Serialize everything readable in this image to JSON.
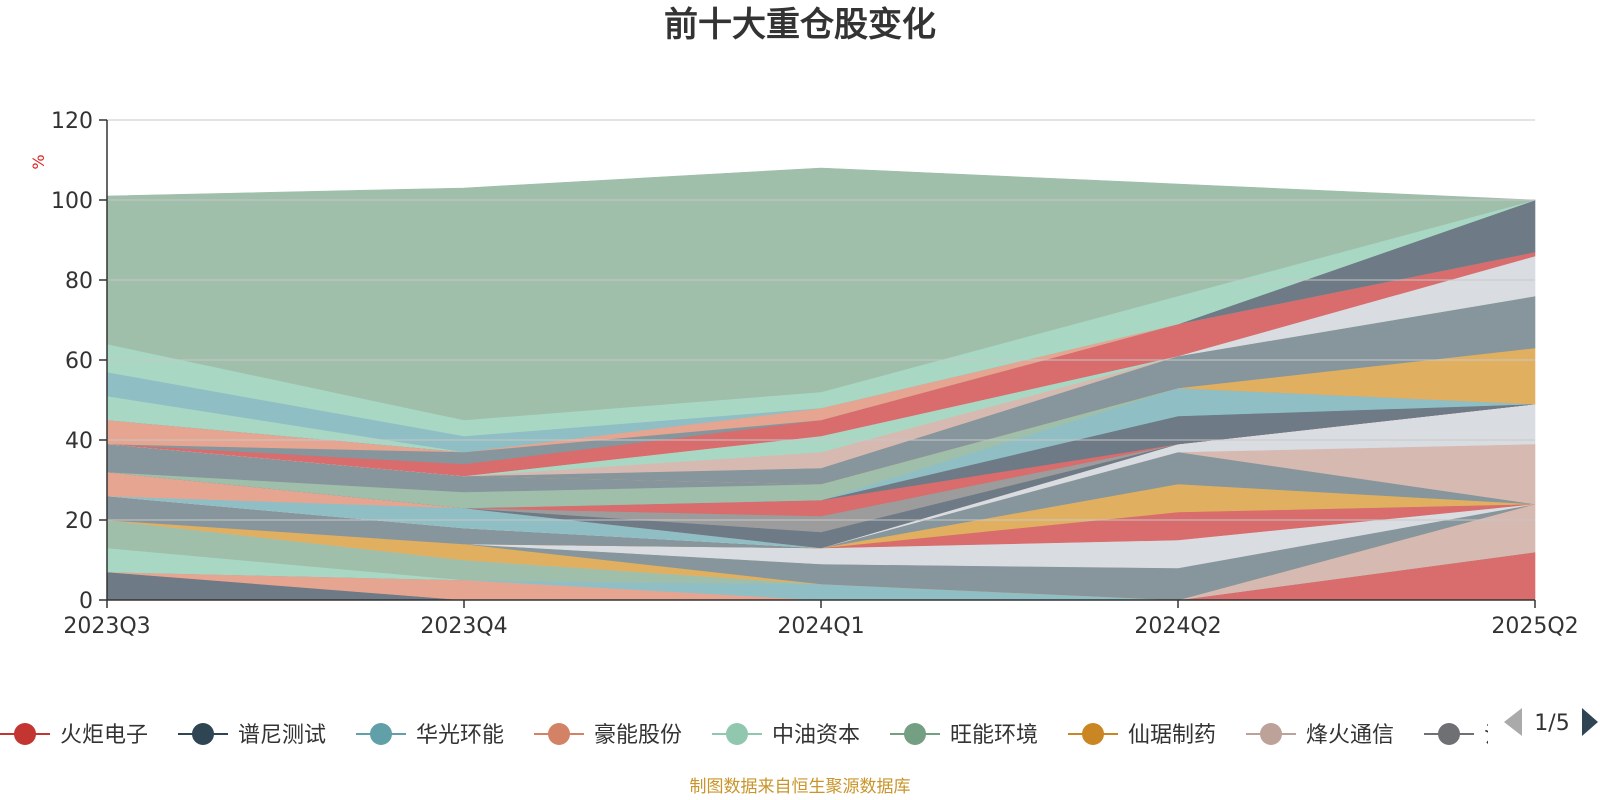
{
  "chart_data": {
    "type": "area",
    "title": "前十大重仓股变化",
    "ylabel": "%",
    "ylim": [
      0,
      120
    ],
    "yticks": [
      0,
      20,
      40,
      60,
      80,
      100,
      120
    ],
    "grid": true,
    "legend_position": "bottom",
    "x": [
      "2023Q3",
      "2023Q4",
      "2024Q1",
      "2024Q2",
      "2025Q2"
    ],
    "series_order_note_hidden": false,
    "layers": [
      {
        "color": "#6e7a85",
        "values": [
          7,
          0,
          0,
          0,
          0
        ]
      },
      {
        "color": "#e6a591",
        "values": [
          0,
          5,
          0,
          0,
          0
        ]
      },
      {
        "color": "#8fbfc5",
        "values": [
          0,
          0,
          4,
          0,
          0
        ]
      },
      {
        "color": "#d96c6c",
        "values": [
          0,
          0,
          0,
          0,
          12
        ]
      },
      {
        "color": "#a8d8c4",
        "values": [
          6,
          0,
          0,
          0,
          0
        ]
      },
      {
        "color": "#9fbfaa",
        "values": [
          7,
          5,
          0,
          0,
          0
        ]
      },
      {
        "color": "#d6bab2",
        "values": [
          0,
          0,
          0,
          0,
          12
        ]
      },
      {
        "color": "#e0b060",
        "values": [
          0,
          4,
          0,
          0,
          0
        ]
      },
      {
        "color": "#86969c",
        "values": [
          0,
          0,
          5,
          8,
          0
        ]
      },
      {
        "color": "#d9dce0",
        "values": [
          0,
          0,
          4,
          7,
          0
        ]
      },
      {
        "color": "#d96c6c",
        "values": [
          0,
          0,
          0,
          7,
          0
        ]
      },
      {
        "color": "#e0b060",
        "values": [
          0,
          0,
          0,
          7,
          0
        ]
      },
      {
        "color": "#86969c",
        "values": [
          6,
          4,
          0,
          8,
          0
        ]
      },
      {
        "color": "#d6bab2",
        "values": [
          0,
          0,
          0,
          0,
          15
        ]
      },
      {
        "color": "#d9dce0",
        "values": [
          0,
          0,
          0,
          2,
          10
        ]
      },
      {
        "color": "#8fbfc5",
        "values": [
          0,
          5,
          0,
          0,
          0
        ]
      },
      {
        "color": "#e6a591",
        "values": [
          6,
          0,
          0,
          0,
          0
        ]
      },
      {
        "color": "#6e7a85",
        "values": [
          0,
          0,
          4,
          0,
          0
        ]
      },
      {
        "color": "#9c9c9c",
        "values": [
          0,
          0,
          4,
          0,
          0
        ]
      },
      {
        "color": "#d96c6c",
        "values": [
          0,
          0,
          4,
          0,
          0
        ]
      },
      {
        "color": "#6e7a85",
        "values": [
          0,
          0,
          0,
          7,
          0
        ]
      },
      {
        "color": "#8fbfc5",
        "values": [
          0,
          0,
          0,
          7,
          0
        ]
      },
      {
        "color": "#9fbfaa",
        "values": [
          0,
          4,
          4,
          0,
          0
        ]
      },
      {
        "color": "#86969c",
        "values": [
          7,
          4,
          0,
          0,
          0
        ]
      },
      {
        "color": "#e6a591",
        "values": [
          0,
          0,
          0,
          0,
          0
        ]
      },
      {
        "color": "#e0b060",
        "values": [
          0,
          0,
          0,
          0,
          14
        ]
      },
      {
        "color": "#86969c",
        "values": [
          0,
          0,
          4,
          8,
          13
        ]
      },
      {
        "color": "#d6bab2",
        "values": [
          0,
          0,
          4,
          0,
          0
        ]
      },
      {
        "color": "#a8d8c4",
        "values": [
          0,
          0,
          4,
          0,
          0
        ]
      },
      {
        "color": "#d9dce0",
        "values": [
          0,
          0,
          0,
          0,
          10
        ]
      },
      {
        "color": "#d96c6c",
        "values": [
          0,
          3,
          4,
          8,
          1
        ]
      },
      {
        "color": "#86969c",
        "values": [
          0,
          3,
          0,
          0,
          0
        ]
      },
      {
        "color": "#e6a591",
        "values": [
          6,
          0,
          3,
          0,
          0
        ]
      },
      {
        "color": "#6e7a85",
        "values": [
          0,
          0,
          0,
          0,
          13
        ]
      },
      {
        "color": "#a8d8c4",
        "values": [
          6,
          0,
          0,
          0,
          0
        ]
      },
      {
        "color": "#8fbfc5",
        "values": [
          6,
          4,
          0,
          0,
          0
        ]
      },
      {
        "color": "#a8d8c4",
        "values": [
          7,
          4,
          4,
          7,
          0
        ]
      },
      {
        "color": "#9fbfaa",
        "values": [
          37,
          58,
          56,
          28,
          0
        ]
      }
    ],
    "legend": [
      {
        "name": "火炬电子",
        "color": "#c23531"
      },
      {
        "name": "谱尼测试",
        "color": "#2f4554"
      },
      {
        "name": "华光环能",
        "color": "#61a0a8"
      },
      {
        "name": "豪能股份",
        "color": "#d48265"
      },
      {
        "name": "中油资本",
        "color": "#91c7ae"
      },
      {
        "name": "旺能环境",
        "color": "#749f83"
      },
      {
        "name": "仙琚制药",
        "color": "#ca8622"
      },
      {
        "name": "烽火通信",
        "color": "#bda29a"
      },
      {
        "name": "氵",
        "color": "#6e7074"
      }
    ],
    "legend_page": "1/5",
    "footer": "制图数据来自恒生聚源数据库"
  }
}
